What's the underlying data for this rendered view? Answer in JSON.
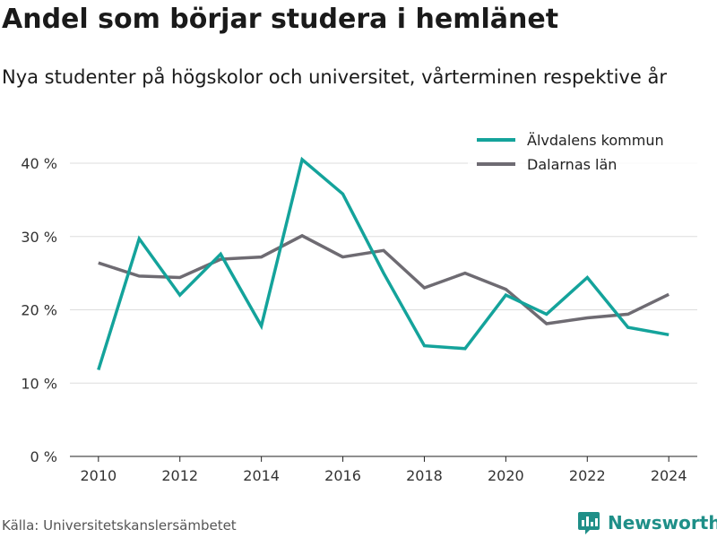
{
  "title": "Andel som börjar studera i hemlänet",
  "subtitle": "Nya studenter på högskolor och universitet, vårterminen respektive år",
  "source": "Källa: Universitetskanslersämbetet",
  "brand": {
    "name": "Newsworthy",
    "icon": "newsworthy-logo-icon",
    "color": "#1f8f88"
  },
  "chart_data": {
    "type": "line",
    "title": "Andel som börjar studera i hemlänet",
    "subtitle": "Nya studenter på högskolor och universitet, vårterminen respektive år",
    "x": [
      2010,
      2011,
      2012,
      2013,
      2014,
      2015,
      2016,
      2017,
      2018,
      2019,
      2020,
      2021,
      2022,
      2023,
      2024
    ],
    "x_ticks": [
      2010,
      2012,
      2014,
      2016,
      2018,
      2020,
      2022,
      2024
    ],
    "y_ticks": [
      0,
      10,
      20,
      30,
      40
    ],
    "y_tick_labels": [
      "0 %",
      "10 %",
      "20 %",
      "30 %",
      "40 %"
    ],
    "xlim": [
      2009.3,
      2024.7
    ],
    "ylim": [
      0,
      40
    ],
    "grid": true,
    "legend_position": "top-right",
    "series": [
      {
        "name": "Älvdalens kommun",
        "color": "#14a39b",
        "values": [
          11.8,
          29.7,
          22.0,
          27.6,
          17.8,
          40.5,
          35.8,
          25.0,
          15.1,
          14.7,
          22.0,
          19.4,
          24.4,
          17.6,
          16.6
        ]
      },
      {
        "name": "Dalarnas län",
        "color": "#6e6b72",
        "values": [
          26.4,
          24.6,
          24.4,
          26.9,
          27.2,
          30.1,
          27.2,
          28.1,
          23.0,
          25.0,
          22.8,
          18.1,
          18.9,
          19.4,
          22.1
        ]
      }
    ]
  }
}
